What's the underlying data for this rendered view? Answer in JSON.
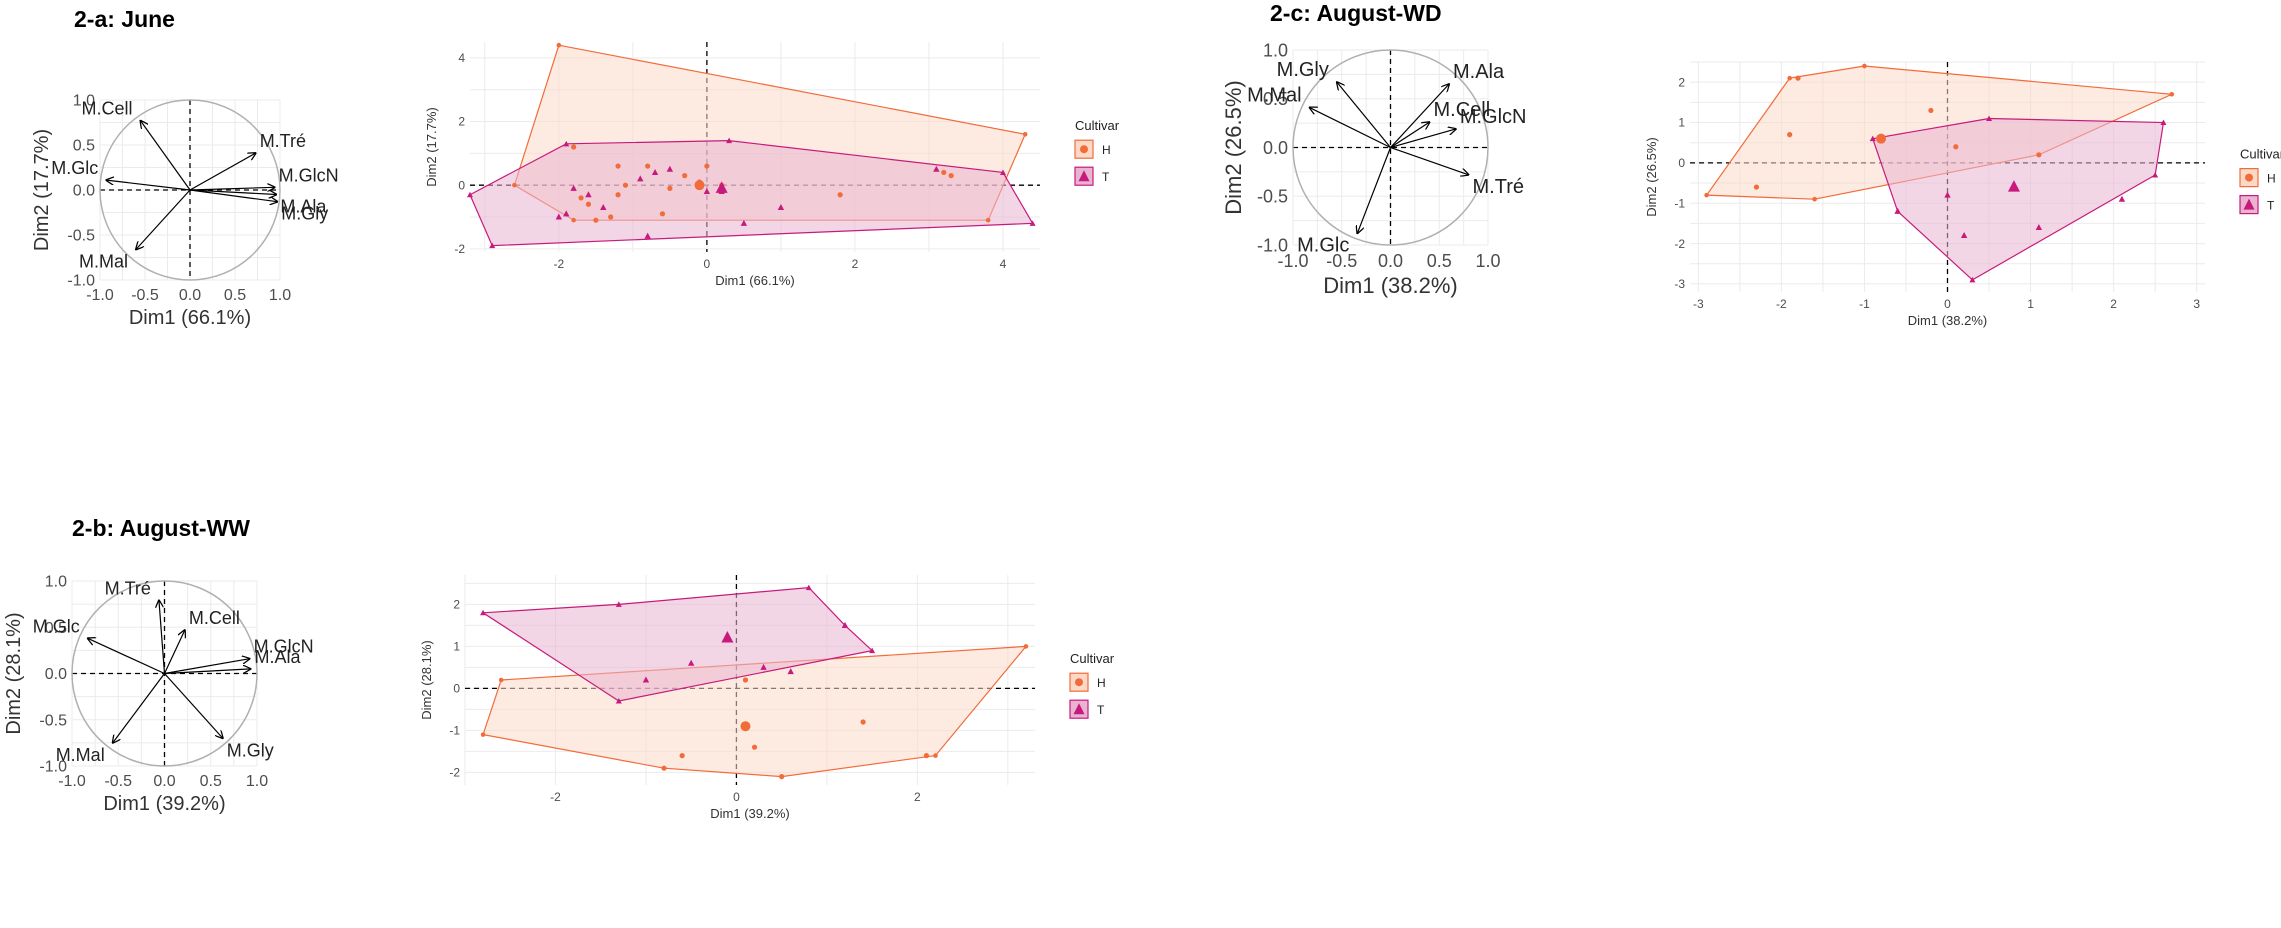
{
  "panels": [
    {
      "id": "2a",
      "title": "2-a: June"
    },
    {
      "id": "2b",
      "title": "2-b: August-WW"
    },
    {
      "id": "2c",
      "title": "2-c: August-WD"
    }
  ],
  "colors": {
    "H": "#f26b3a",
    "T": "#c71a7c",
    "H_fill": "#fbd9c6",
    "T_fill": "#e9b4d2",
    "grid": "#ebebeb",
    "circle": "#b0b0b0"
  },
  "chart_data": [
    {
      "id": "2a-var",
      "type": "scatter",
      "subtype": "pca-variable-circle",
      "xlabel": "Dim1 (66.1%)",
      "ylabel": "Dim2 (17.7%)",
      "xlim": [
        -1,
        1
      ],
      "ylim": [
        -1,
        1
      ],
      "xticks": [
        "-1.0",
        "-0.5",
        "0.0",
        "0.5",
        "1.0"
      ],
      "yticks": [
        "-1.0",
        "-0.5",
        "0.0",
        "0.5",
        "1.0"
      ],
      "vectors": [
        {
          "name": "M.Cell",
          "x": -0.55,
          "y": 0.77
        },
        {
          "name": "M.Tré",
          "x": 0.73,
          "y": 0.41
        },
        {
          "name": "M.GlcN",
          "x": 0.94,
          "y": 0.03
        },
        {
          "name": "M.Ala",
          "x": 0.96,
          "y": -0.05
        },
        {
          "name": "M.Gly",
          "x": 0.97,
          "y": -0.13
        },
        {
          "name": "M.Glc",
          "x": -0.93,
          "y": 0.11
        },
        {
          "name": "M.Mal",
          "x": -0.6,
          "y": -0.66
        }
      ]
    },
    {
      "id": "2a-ind",
      "type": "scatter",
      "subtype": "pca-individuals",
      "xlabel": "Dim1 (66.1%)",
      "ylabel": "Dim2 (17.7%)",
      "xlim": [
        -3.2,
        4.5
      ],
      "ylim": [
        -2.1,
        4.5
      ],
      "xticks": [
        "-2",
        "0",
        "2",
        "4"
      ],
      "yticks": [
        "-2",
        "0",
        "2",
        "4"
      ],
      "legend": {
        "title": "Cultivar",
        "entries": [
          "H",
          "T"
        ]
      },
      "hulls": {
        "H": [
          [
            -2.0,
            4.4
          ],
          [
            4.3,
            1.6
          ],
          [
            3.8,
            -1.1
          ],
          [
            -1.8,
            -1.1
          ],
          [
            -2.6,
            0.0
          ]
        ],
        "T": [
          [
            -1.9,
            1.3
          ],
          [
            0.3,
            1.4
          ],
          [
            4.0,
            0.4
          ],
          [
            4.4,
            -1.2
          ],
          [
            -2.9,
            -1.9
          ],
          [
            -3.2,
            -0.3
          ]
        ]
      },
      "series": [
        {
          "name": "H",
          "points": [
            [
              -1.8,
              1.2
            ],
            [
              -1.2,
              0.6
            ],
            [
              -1.1,
              0.0
            ],
            [
              -0.8,
              0.6
            ],
            [
              -0.5,
              -0.1
            ],
            [
              0.0,
              0.6
            ],
            [
              -0.1,
              0.1
            ],
            [
              0.2,
              0.0
            ],
            [
              -0.3,
              0.3
            ],
            [
              1.8,
              -0.3
            ],
            [
              3.2,
              0.4
            ],
            [
              3.3,
              0.3
            ],
            [
              -1.5,
              -1.1
            ],
            [
              -1.3,
              -1.0
            ],
            [
              -1.7,
              -0.4
            ],
            [
              -1.6,
              -0.6
            ],
            [
              -0.6,
              -0.9
            ],
            [
              -1.2,
              -0.3
            ]
          ],
          "centroid": [
            -0.1,
            0.0
          ]
        },
        {
          "name": "T",
          "points": [
            [
              -1.9,
              -0.9
            ],
            [
              -1.8,
              -0.1
            ],
            [
              -1.6,
              -0.3
            ],
            [
              -1.4,
              -0.7
            ],
            [
              -0.9,
              0.2
            ],
            [
              -0.7,
              0.4
            ],
            [
              -0.5,
              0.5
            ],
            [
              0.0,
              -0.2
            ],
            [
              0.2,
              -0.2
            ],
            [
              0.5,
              -1.2
            ],
            [
              1.0,
              -0.7
            ],
            [
              3.1,
              0.5
            ],
            [
              -0.8,
              -1.6
            ],
            [
              -2.0,
              -1.0
            ]
          ],
          "centroid": [
            0.2,
            -0.1
          ]
        }
      ]
    },
    {
      "id": "2b-var",
      "type": "scatter",
      "subtype": "pca-variable-circle",
      "xlabel": "Dim1 (39.2%)",
      "ylabel": "Dim2 (28.1%)",
      "xlim": [
        -1,
        1
      ],
      "ylim": [
        -1,
        1
      ],
      "xticks": [
        "-1.0",
        "-0.5",
        "0.0",
        "0.5",
        "1.0"
      ],
      "yticks": [
        "-1.0",
        "-0.5",
        "0.0",
        "0.5",
        "1.0"
      ],
      "vectors": [
        {
          "name": "M.Tré",
          "x": -0.06,
          "y": 0.79
        },
        {
          "name": "M.Cell",
          "x": 0.22,
          "y": 0.47
        },
        {
          "name": "M.GlcN",
          "x": 0.92,
          "y": 0.16
        },
        {
          "name": "M.Ala",
          "x": 0.93,
          "y": 0.05
        },
        {
          "name": "M.Glc",
          "x": -0.83,
          "y": 0.38
        },
        {
          "name": "M.Mal",
          "x": -0.56,
          "y": -0.75
        },
        {
          "name": "M.Gly",
          "x": 0.63,
          "y": -0.7
        }
      ]
    },
    {
      "id": "2b-ind",
      "type": "scatter",
      "subtype": "pca-individuals",
      "xlabel": "Dim1 (39.2%)",
      "ylabel": "Dim2 (28.1%)",
      "xlim": [
        -3,
        3.3
      ],
      "ylim": [
        -2.3,
        2.7
      ],
      "xticks": [
        "-2",
        "0",
        "2"
      ],
      "yticks": [
        "-2",
        "-1",
        "0",
        "1",
        "2"
      ],
      "legend": {
        "title": "Cultivar",
        "entries": [
          "H",
          "T"
        ]
      },
      "hulls": {
        "H": [
          [
            -2.6,
            0.2
          ],
          [
            3.2,
            1.0
          ],
          [
            2.2,
            -1.6
          ],
          [
            0.5,
            -2.1
          ],
          [
            -0.8,
            -1.9
          ],
          [
            -2.8,
            -1.1
          ]
        ],
        "T": [
          [
            -2.8,
            1.8
          ],
          [
            -1.3,
            2.0
          ],
          [
            0.8,
            2.4
          ],
          [
            1.2,
            1.5
          ],
          [
            1.5,
            0.9
          ],
          [
            -1.3,
            -0.3
          ]
        ]
      },
      "series": [
        {
          "name": "H",
          "points": [
            [
              0.2,
              -1.4
            ],
            [
              0.5,
              -2.1
            ],
            [
              -0.6,
              -1.6
            ],
            [
              1.4,
              -0.8
            ],
            [
              2.1,
              -1.6
            ],
            [
              0.1,
              0.2
            ],
            [
              -0.8,
              -1.9
            ]
          ],
          "centroid": [
            0.1,
            -0.9
          ]
        },
        {
          "name": "T",
          "points": [
            [
              -0.5,
              0.6
            ],
            [
              0.3,
              0.5
            ],
            [
              0.6,
              0.4
            ],
            [
              1.2,
              1.5
            ],
            [
              -1.0,
              0.2
            ]
          ],
          "centroid": [
            -0.1,
            1.2
          ]
        }
      ]
    },
    {
      "id": "2c-var",
      "type": "scatter",
      "subtype": "pca-variable-circle",
      "xlabel": "Dim1 (38.2%)",
      "ylabel": "Dim2 (26.5%)",
      "xlim": [
        -1,
        1
      ],
      "ylim": [
        -1,
        1
      ],
      "xticks": [
        "-1.0",
        "-0.5",
        "0.0",
        "0.5",
        "1.0"
      ],
      "yticks": [
        "-1.0",
        "-0.5",
        "0.0",
        "0.5",
        "1.0"
      ],
      "vectors": [
        {
          "name": "M.Gly",
          "x": -0.55,
          "y": 0.67
        },
        {
          "name": "M.Ala",
          "x": 0.6,
          "y": 0.65
        },
        {
          "name": "M.Mal",
          "x": -0.83,
          "y": 0.41
        },
        {
          "name": "M.Cell",
          "x": 0.4,
          "y": 0.26
        },
        {
          "name": "M.GlcN",
          "x": 0.67,
          "y": 0.19
        },
        {
          "name": "M.Tré",
          "x": 0.8,
          "y": -0.28
        },
        {
          "name": "M.Glc",
          "x": -0.34,
          "y": -0.88
        }
      ]
    },
    {
      "id": "2c-ind",
      "type": "scatter",
      "subtype": "pca-individuals",
      "xlabel": "Dim1 (38.2%)",
      "ylabel": "Dim2 (26.5%)",
      "xlim": [
        -3.1,
        3.1
      ],
      "ylim": [
        -3.2,
        2.5
      ],
      "xticks": [
        "-3",
        "-2",
        "-1",
        "0",
        "1",
        "2",
        "3"
      ],
      "yticks": [
        "-3",
        "-2",
        "-1",
        "0",
        "1",
        "2"
      ],
      "legend": {
        "title": "Cultivar",
        "entries": [
          "H",
          "T"
        ]
      },
      "hulls": {
        "H": [
          [
            -1.9,
            2.1
          ],
          [
            -1.0,
            2.4
          ],
          [
            2.7,
            1.7
          ],
          [
            1.1,
            0.2
          ],
          [
            -1.6,
            -0.9
          ],
          [
            -2.9,
            -0.8
          ]
        ],
        "T": [
          [
            -0.9,
            0.6
          ],
          [
            0.5,
            1.1
          ],
          [
            2.6,
            1.0
          ],
          [
            2.5,
            -0.3
          ],
          [
            0.3,
            -2.9
          ],
          [
            -0.6,
            -1.2
          ]
        ]
      },
      "series": [
        {
          "name": "H",
          "points": [
            [
              -1.9,
              0.7
            ],
            [
              -2.3,
              -0.6
            ],
            [
              -0.2,
              1.3
            ],
            [
              0.1,
              0.4
            ],
            [
              -1.8,
              2.1
            ],
            [
              1.1,
              0.2
            ]
          ],
          "centroid": [
            -0.8,
            0.6
          ]
        },
        {
          "name": "T",
          "points": [
            [
              0.0,
              -0.8
            ],
            [
              0.2,
              -1.8
            ],
            [
              1.1,
              -1.6
            ],
            [
              2.1,
              -0.9
            ],
            [
              -0.6,
              -1.2
            ]
          ],
          "centroid": [
            0.8,
            -0.6
          ]
        }
      ]
    }
  ]
}
